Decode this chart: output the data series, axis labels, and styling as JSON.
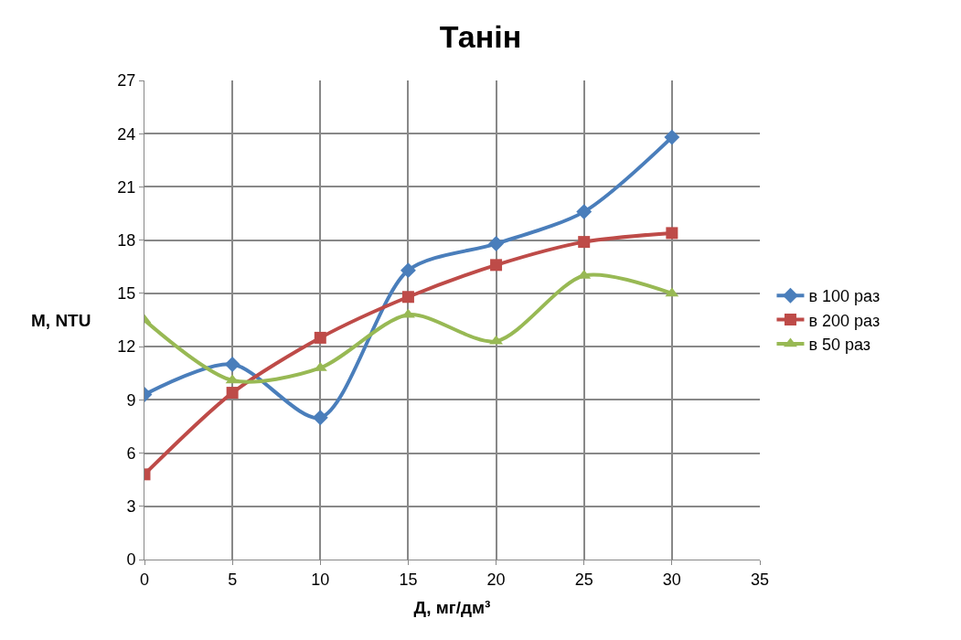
{
  "chart_data": {
    "type": "line",
    "title": "Танін",
    "xlabel": "Д, мг/дм³",
    "ylabel": "М, NTU",
    "x": [
      0,
      5,
      10,
      15,
      20,
      25,
      30
    ],
    "series": [
      {
        "name": "в 100 раз",
        "color": "#4a7ebb",
        "marker": "diamond",
        "values": [
          9.3,
          11.0,
          8.0,
          16.3,
          17.8,
          19.6,
          23.8
        ]
      },
      {
        "name": "в 200 раз",
        "color": "#be4b48",
        "marker": "square",
        "values": [
          4.8,
          9.4,
          12.5,
          14.8,
          16.6,
          17.9,
          18.4
        ]
      },
      {
        "name": "в 50 раз",
        "color": "#98b954",
        "marker": "triangle",
        "values": [
          13.5,
          10.1,
          10.8,
          13.8,
          12.3,
          16.0,
          15.0
        ]
      }
    ],
    "xlim": [
      0,
      35
    ],
    "xticks": [
      0,
      5,
      10,
      15,
      20,
      25,
      30,
      35
    ],
    "ylim": [
      0,
      27
    ],
    "yticks": [
      0,
      3,
      6,
      9,
      12,
      15,
      18,
      21,
      24,
      27
    ],
    "grid": true,
    "legend": "right",
    "line_style": "solid"
  }
}
